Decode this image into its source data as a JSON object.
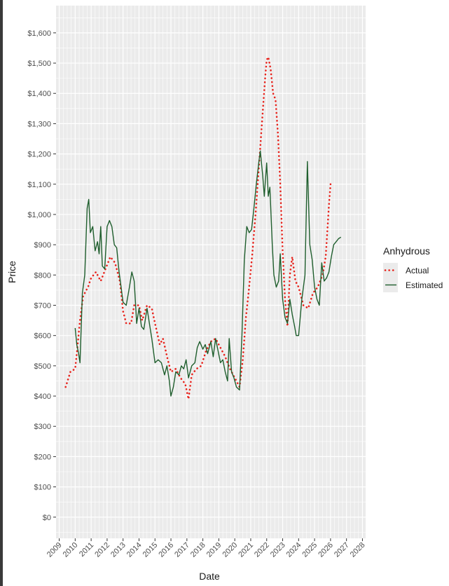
{
  "chart_data": {
    "type": "line",
    "xlabel": "Date",
    "ylabel": "Price",
    "x_ticks": [
      "2009",
      "2010",
      "2011",
      "2012",
      "2013",
      "2014",
      "2015",
      "2016",
      "2017",
      "2018",
      "2019",
      "2020",
      "2021",
      "2022",
      "2023",
      "2024",
      "2025",
      "2026",
      "2027",
      "2028"
    ],
    "y_ticks": [
      "$0",
      "$100",
      "$200",
      "$300",
      "$400",
      "$500",
      "$600",
      "$700",
      "$800",
      "$900",
      "$1,000",
      "$1,100",
      "$1,200",
      "$1,300",
      "$1,400",
      "$1,500",
      "$1,600"
    ],
    "xlim": [
      2008.8,
      2028.2
    ],
    "ylim": [
      -70,
      1690
    ],
    "grid": true,
    "legend": {
      "title": "Anhydrous",
      "position": "right",
      "items": [
        "Actual",
        "Estimated"
      ]
    },
    "series": [
      {
        "name": "Actual",
        "color": "#e8211a",
        "style": "dotted",
        "points": [
          [
            2009.4,
            430
          ],
          [
            2009.7,
            480
          ],
          [
            2010.0,
            490
          ],
          [
            2010.1,
            540
          ],
          [
            2010.3,
            650
          ],
          [
            2010.5,
            730
          ],
          [
            2010.8,
            760
          ],
          [
            2011.0,
            790
          ],
          [
            2011.3,
            810
          ],
          [
            2011.6,
            780
          ],
          [
            2011.9,
            820
          ],
          [
            2012.2,
            860
          ],
          [
            2012.5,
            840
          ],
          [
            2012.8,
            780
          ],
          [
            2013.0,
            680
          ],
          [
            2013.2,
            640
          ],
          [
            2013.5,
            640
          ],
          [
            2013.7,
            700
          ],
          [
            2014.0,
            700
          ],
          [
            2014.2,
            650
          ],
          [
            2014.5,
            700
          ],
          [
            2014.8,
            690
          ],
          [
            2015.0,
            640
          ],
          [
            2015.3,
            570
          ],
          [
            2015.5,
            590
          ],
          [
            2015.8,
            520
          ],
          [
            2016.0,
            480
          ],
          [
            2016.3,
            490
          ],
          [
            2016.6,
            460
          ],
          [
            2016.9,
            440
          ],
          [
            2017.1,
            390
          ],
          [
            2017.3,
            470
          ],
          [
            2017.6,
            490
          ],
          [
            2017.9,
            500
          ],
          [
            2018.2,
            550
          ],
          [
            2018.5,
            580
          ],
          [
            2018.8,
            590
          ],
          [
            2019.1,
            560
          ],
          [
            2019.4,
            530
          ],
          [
            2019.7,
            490
          ],
          [
            2020.0,
            460
          ],
          [
            2020.3,
            430
          ],
          [
            2020.5,
            520
          ],
          [
            2020.7,
            660
          ],
          [
            2020.9,
            760
          ],
          [
            2021.1,
            870
          ],
          [
            2021.3,
            1000
          ],
          [
            2021.5,
            1150
          ],
          [
            2021.7,
            1300
          ],
          [
            2021.9,
            1450
          ],
          [
            2022.0,
            1510
          ],
          [
            2022.1,
            1520
          ],
          [
            2022.25,
            1480
          ],
          [
            2022.4,
            1400
          ],
          [
            2022.55,
            1380
          ],
          [
            2022.7,
            1270
          ],
          [
            2022.85,
            1100
          ],
          [
            2023.0,
            880
          ],
          [
            2023.15,
            720
          ],
          [
            2023.3,
            630
          ],
          [
            2023.45,
            800
          ],
          [
            2023.6,
            860
          ],
          [
            2023.8,
            780
          ],
          [
            2024.0,
            760
          ],
          [
            2024.3,
            700
          ],
          [
            2024.6,
            690
          ],
          [
            2024.9,
            740
          ],
          [
            2025.2,
            760
          ],
          [
            2025.5,
            800
          ],
          [
            2025.7,
            860
          ],
          [
            2025.9,
            1030
          ],
          [
            2026.0,
            1100
          ]
        ]
      },
      {
        "name": "Estimated",
        "color": "#1f5e2d",
        "style": "solid",
        "points": [
          [
            2010.0,
            625
          ],
          [
            2010.1,
            570
          ],
          [
            2010.2,
            545
          ],
          [
            2010.3,
            510
          ],
          [
            2010.45,
            740
          ],
          [
            2010.6,
            800
          ],
          [
            2010.75,
            1020
          ],
          [
            2010.85,
            1050
          ],
          [
            2010.95,
            940
          ],
          [
            2011.1,
            960
          ],
          [
            2011.25,
            880
          ],
          [
            2011.4,
            910
          ],
          [
            2011.5,
            870
          ],
          [
            2011.6,
            960
          ],
          [
            2011.7,
            830
          ],
          [
            2011.85,
            820
          ],
          [
            2012.0,
            960
          ],
          [
            2012.15,
            980
          ],
          [
            2012.3,
            960
          ],
          [
            2012.45,
            900
          ],
          [
            2012.6,
            890
          ],
          [
            2012.75,
            810
          ],
          [
            2012.85,
            770
          ],
          [
            2013.0,
            710
          ],
          [
            2013.2,
            700
          ],
          [
            2013.4,
            760
          ],
          [
            2013.55,
            810
          ],
          [
            2013.7,
            780
          ],
          [
            2013.85,
            640
          ],
          [
            2014.0,
            690
          ],
          [
            2014.15,
            630
          ],
          [
            2014.3,
            620
          ],
          [
            2014.5,
            690
          ],
          [
            2014.65,
            640
          ],
          [
            2014.8,
            590
          ],
          [
            2015.0,
            510
          ],
          [
            2015.2,
            520
          ],
          [
            2015.4,
            510
          ],
          [
            2015.6,
            470
          ],
          [
            2015.75,
            500
          ],
          [
            2015.9,
            450
          ],
          [
            2016.0,
            400
          ],
          [
            2016.15,
            430
          ],
          [
            2016.3,
            480
          ],
          [
            2016.5,
            470
          ],
          [
            2016.65,
            500
          ],
          [
            2016.8,
            490
          ],
          [
            2016.95,
            520
          ],
          [
            2017.1,
            460
          ],
          [
            2017.3,
            500
          ],
          [
            2017.5,
            510
          ],
          [
            2017.65,
            560
          ],
          [
            2017.8,
            580
          ],
          [
            2018.0,
            555
          ],
          [
            2018.15,
            570
          ],
          [
            2018.3,
            540
          ],
          [
            2018.5,
            580
          ],
          [
            2018.65,
            530
          ],
          [
            2018.8,
            590
          ],
          [
            2018.95,
            550
          ],
          [
            2019.1,
            510
          ],
          [
            2019.25,
            520
          ],
          [
            2019.4,
            480
          ],
          [
            2019.55,
            450
          ],
          [
            2019.65,
            590
          ],
          [
            2019.8,
            480
          ],
          [
            2019.95,
            460
          ],
          [
            2020.1,
            430
          ],
          [
            2020.3,
            420
          ],
          [
            2020.45,
            600
          ],
          [
            2020.6,
            850
          ],
          [
            2020.75,
            960
          ],
          [
            2020.9,
            940
          ],
          [
            2021.05,
            950
          ],
          [
            2021.2,
            1020
          ],
          [
            2021.35,
            1100
          ],
          [
            2021.5,
            1170
          ],
          [
            2021.6,
            1210
          ],
          [
            2021.75,
            1130
          ],
          [
            2021.85,
            1060
          ],
          [
            2022.0,
            1170
          ],
          [
            2022.1,
            1060
          ],
          [
            2022.2,
            1090
          ],
          [
            2022.35,
            900
          ],
          [
            2022.45,
            800
          ],
          [
            2022.6,
            760
          ],
          [
            2022.75,
            780
          ],
          [
            2022.85,
            870
          ],
          [
            2023.0,
            720
          ],
          [
            2023.15,
            660
          ],
          [
            2023.3,
            640
          ],
          [
            2023.45,
            720
          ],
          [
            2023.6,
            670
          ],
          [
            2023.75,
            630
          ],
          [
            2023.85,
            600
          ],
          [
            2024.0,
            600
          ],
          [
            2024.2,
            720
          ],
          [
            2024.4,
            800
          ],
          [
            2024.55,
            1175
          ],
          [
            2024.7,
            900
          ],
          [
            2024.85,
            850
          ],
          [
            2025.0,
            760
          ],
          [
            2025.15,
            720
          ],
          [
            2025.3,
            700
          ],
          [
            2025.45,
            840
          ],
          [
            2025.6,
            780
          ],
          [
            2025.75,
            790
          ],
          [
            2025.9,
            810
          ],
          [
            2026.05,
            860
          ],
          [
            2026.2,
            900
          ],
          [
            2026.35,
            910
          ],
          [
            2026.5,
            920
          ],
          [
            2026.65,
            925
          ]
        ]
      }
    ]
  }
}
